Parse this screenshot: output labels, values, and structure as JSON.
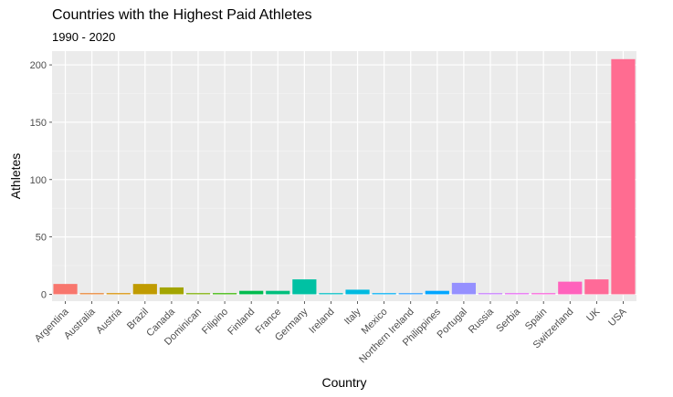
{
  "chart_data": {
    "type": "bar",
    "title": "Countries with the Highest Paid Athletes",
    "subtitle": "1990 - 2020",
    "xlabel": "Country",
    "ylabel": "Athletes",
    "ylim": [
      -6,
      212
    ],
    "yticks": [
      0,
      50,
      100,
      150,
      200
    ],
    "grid": true,
    "legend": "none",
    "categories": [
      "Argentina",
      "Australia",
      "Austria",
      "Brazil",
      "Canada",
      "Dominican",
      "Filipino",
      "Finland",
      "France",
      "Germany",
      "Ireland",
      "Italy",
      "Mexico",
      "Northern Ireland",
      "Philippines",
      "Portugal",
      "Russia",
      "Serbia",
      "Spain",
      "Switzerland",
      "UK",
      "USA"
    ],
    "values": [
      9,
      1,
      1,
      9,
      6,
      1,
      1,
      3,
      3,
      13,
      1,
      4,
      1,
      1,
      3,
      10,
      1,
      1,
      1,
      11,
      13,
      205
    ],
    "colors": [
      "#F8766D",
      "#EA8331",
      "#D89000",
      "#C09B00",
      "#A3A500",
      "#7CAE00",
      "#39B600",
      "#00BB4E",
      "#00BF7D",
      "#00C1A3",
      "#00BFC4",
      "#00BAE0",
      "#00B0F6",
      "#35A2FF",
      "#00A5FF",
      "#9590FF",
      "#C77CFF",
      "#E76BF3",
      "#FA62DB",
      "#FF62BC",
      "#FF6A98",
      "#FF6C91"
    ]
  }
}
